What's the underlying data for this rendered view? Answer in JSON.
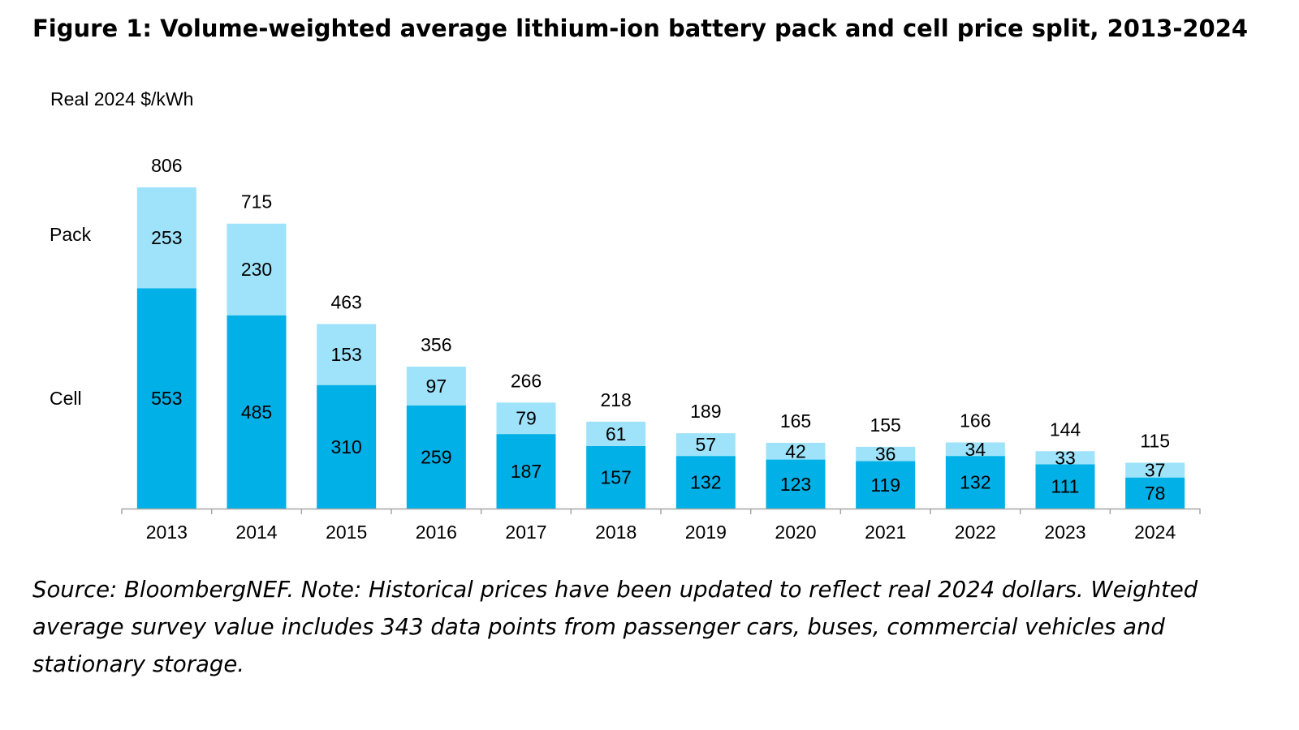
{
  "figure": {
    "title": "Figure 1: Volume-weighted average lithium-ion battery pack and cell price split, 2013-2024",
    "source_note": "Source: BloombergNEF. Note: Historical prices have been updated to reflect real 2024 dollars. Weighted average survey value includes 343 data points from passenger cars, buses, commercial vehicles and stationary storage."
  },
  "chart_data": {
    "type": "bar",
    "stacked": true,
    "ylabel": "Real 2024 $/kWh",
    "categories": [
      "2013",
      "2014",
      "2015",
      "2016",
      "2017",
      "2018",
      "2019",
      "2020",
      "2021",
      "2022",
      "2023",
      "2024"
    ],
    "series": [
      {
        "name": "Cell",
        "color": "#00b0e6",
        "values": [
          553,
          485,
          310,
          259,
          187,
          157,
          132,
          123,
          119,
          132,
          111,
          78
        ]
      },
      {
        "name": "Pack",
        "color": "#9ee3fa",
        "values": [
          253,
          230,
          153,
          97,
          79,
          61,
          57,
          42,
          36,
          34,
          33,
          37
        ]
      }
    ],
    "totals": [
      806,
      715,
      463,
      356,
      266,
      218,
      189,
      165,
      155,
      166,
      144,
      115
    ],
    "ylim": [
      0,
      806
    ],
    "y_axis_visible": false,
    "grid": false,
    "legend": "left, as labels beside the first bar"
  }
}
